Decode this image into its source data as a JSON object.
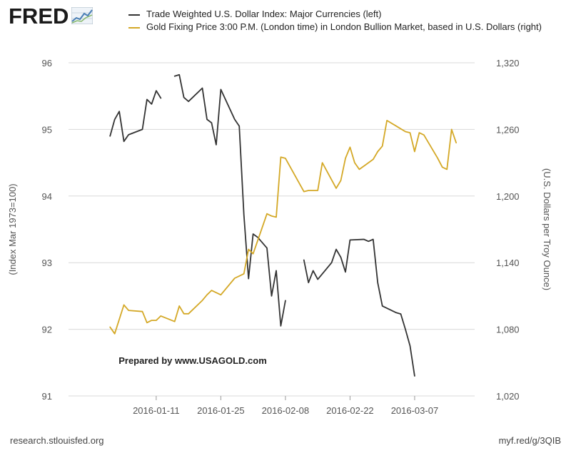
{
  "header": {
    "logo_text": "FRED",
    "logo_icon": "fred-mini-graph-icon"
  },
  "footer": {
    "source_url": "research.stlouisfed.org",
    "short_url": "myf.red/g/3QIB"
  },
  "colors": {
    "dollar": "#333333",
    "gold": "#d4a826",
    "grid": "#d9d9d9",
    "axis_text": "#555555"
  },
  "chart_data": {
    "type": "line",
    "title": "",
    "annotation": "Prepared by www.USAGOLD.com",
    "xlabel": "",
    "ylabel_left": "(Index Mar 1973=100)",
    "ylabel_right": "(U.S. Dollars per Troy Ounce)",
    "x_tick_labels": [
      "2016-01-11",
      "2016-01-25",
      "2016-02-08",
      "2016-02-22",
      "2016-03-07"
    ],
    "x_tick_days": [
      10,
      24,
      38,
      52,
      66
    ],
    "x_range_days": [
      -9,
      79
    ],
    "y_left": {
      "range": [
        91,
        96
      ],
      "ticks": [
        91,
        92,
        93,
        94,
        95,
        96
      ],
      "tick_labels": [
        "91",
        "92",
        "93",
        "94",
        "95",
        "96"
      ]
    },
    "y_right": {
      "range": [
        1020,
        1320
      ],
      "ticks": [
        1020,
        1080,
        1140,
        1200,
        1260,
        1320
      ],
      "tick_labels": [
        "1,020",
        "1,080",
        "1,140",
        "1,200",
        "1,260",
        "1,320"
      ]
    },
    "series": [
      {
        "name": "Trade Weighted U.S. Dollar Index: Major Currencies (left)",
        "axis": "left",
        "color": "#333333",
        "segments": [
          [
            [
              0,
              94.9
            ],
            [
              1,
              95.15
            ],
            [
              2,
              95.27
            ],
            [
              3,
              94.82
            ],
            [
              4,
              94.92
            ],
            [
              7,
              95.0
            ],
            [
              8,
              95.45
            ],
            [
              9,
              95.38
            ],
            [
              10,
              95.58
            ],
            [
              11,
              95.47
            ]
          ],
          [
            [
              14,
              95.8
            ],
            [
              15,
              95.82
            ],
            [
              16,
              95.48
            ],
            [
              17,
              95.42
            ],
            [
              20,
              95.62
            ],
            [
              21,
              95.15
            ],
            [
              22,
              95.1
            ],
            [
              23,
              94.77
            ],
            [
              24,
              95.6
            ],
            [
              27,
              95.15
            ],
            [
              28,
              95.05
            ],
            [
              29,
              93.72
            ],
            [
              30,
              92.76
            ],
            [
              31,
              93.43
            ],
            [
              32,
              93.38
            ],
            [
              34,
              93.22
            ],
            [
              35,
              92.5
            ],
            [
              36,
              92.88
            ],
            [
              37,
              92.05
            ],
            [
              38,
              92.43
            ]
          ],
          [
            [
              42,
              93.04
            ],
            [
              43,
              92.7
            ],
            [
              44,
              92.88
            ],
            [
              45,
              92.75
            ],
            [
              48,
              93.0
            ],
            [
              49,
              93.2
            ],
            [
              50,
              93.08
            ],
            [
              51,
              92.86
            ],
            [
              52,
              93.34
            ],
            [
              55,
              93.35
            ],
            [
              56,
              93.32
            ],
            [
              57,
              93.35
            ],
            [
              58,
              92.7
            ],
            [
              59,
              92.35
            ],
            [
              62,
              92.25
            ],
            [
              63,
              92.23
            ],
            [
              64,
              92.0
            ],
            [
              65,
              91.75
            ],
            [
              66,
              91.3
            ]
          ]
        ]
      },
      {
        "name": "Gold Fixing Price 3:00 P.M. (London time) in London Bullion Market, based in U.S. Dollars (right)",
        "axis": "right",
        "color": "#d4a826",
        "segments": [
          [
            [
              0,
              1082
            ],
            [
              1,
              1076
            ],
            [
              3,
              1102
            ],
            [
              4,
              1097
            ],
            [
              7,
              1096
            ],
            [
              8,
              1086
            ],
            [
              9,
              1088
            ],
            [
              10,
              1088
            ],
            [
              11,
              1092
            ],
            [
              14,
              1087
            ],
            [
              15,
              1101
            ],
            [
              16,
              1094
            ],
            [
              17,
              1094
            ],
            [
              20,
              1106
            ],
            [
              21,
              1111
            ],
            [
              22,
              1115
            ],
            [
              23,
              1113
            ],
            [
              24,
              1111
            ],
            [
              27,
              1126
            ],
            [
              28,
              1128
            ],
            [
              29,
              1130
            ],
            [
              30,
              1152
            ],
            [
              31,
              1148
            ],
            [
              32,
              1160
            ],
            [
              34,
              1184
            ],
            [
              35,
              1182
            ],
            [
              36,
              1181
            ],
            [
              37,
              1235
            ],
            [
              38,
              1234
            ],
            [
              42,
              1204
            ],
            [
              43,
              1205
            ],
            [
              45,
              1205
            ],
            [
              46,
              1230
            ],
            [
              49,
              1207
            ],
            [
              50,
              1214
            ],
            [
              51,
              1234
            ],
            [
              52,
              1244
            ],
            [
              53,
              1230
            ],
            [
              54,
              1224
            ],
            [
              57,
              1233
            ],
            [
              58,
              1240
            ],
            [
              59,
              1245
            ],
            [
              60,
              1268
            ],
            [
              62,
              1263
            ],
            [
              64,
              1258
            ],
            [
              65,
              1257
            ],
            [
              66,
              1240
            ],
            [
              67,
              1257
            ],
            [
              68,
              1255
            ],
            [
              71,
              1234
            ],
            [
              72,
              1226
            ],
            [
              73,
              1224
            ],
            [
              74,
              1260
            ],
            [
              75,
              1248
            ]
          ]
        ]
      }
    ]
  }
}
